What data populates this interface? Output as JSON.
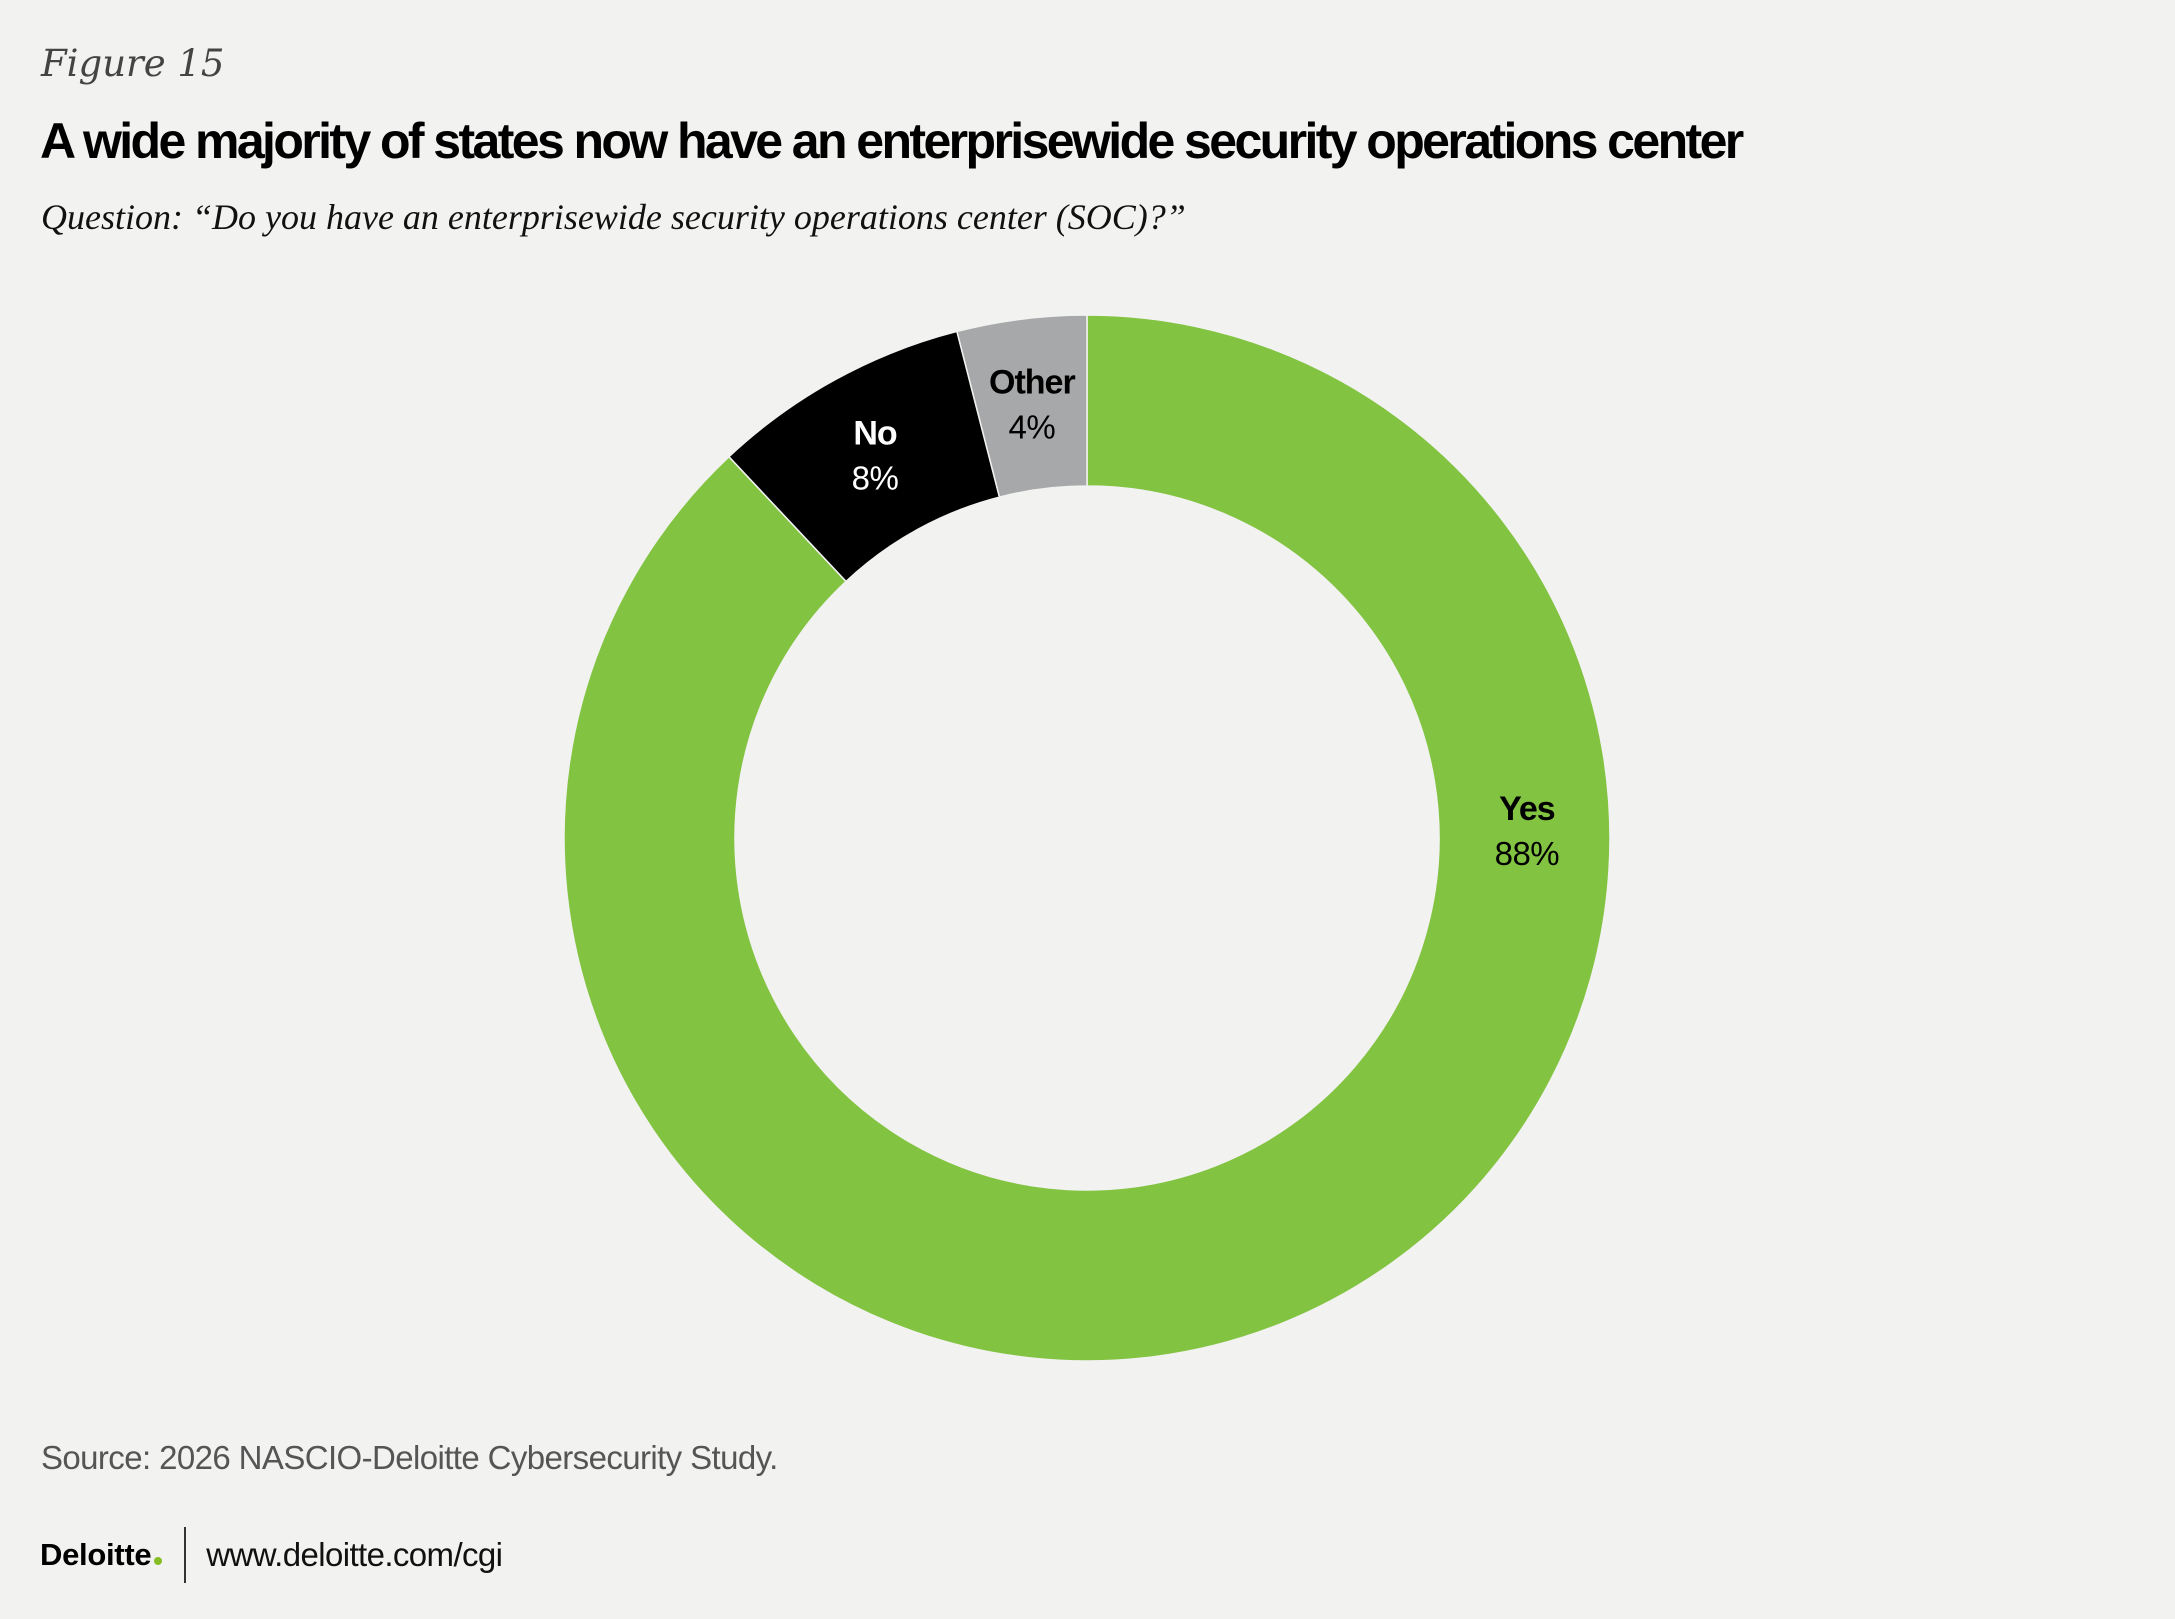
{
  "figure_label": "Figure 15",
  "title": "A wide majority of states now have an enterprisewide security operations center",
  "question": "Question: “Do you have an enterprisewide security operations center (SOC)?”",
  "chart_data": {
    "type": "pie",
    "style": "donut",
    "title": "A wide majority of states now have an enterprisewide security operations center",
    "slices": [
      {
        "label": "Yes",
        "value": 88,
        "display": "88%",
        "color": "#82c341",
        "label_color": "#000000"
      },
      {
        "label": "No",
        "value": 8,
        "display": "8%",
        "color": "#000000",
        "label_color": "#ffffff"
      },
      {
        "label": "Other",
        "value": 4,
        "display": "4%",
        "color": "#a7a8a9",
        "label_color": "#000000"
      }
    ],
    "start": "top",
    "direction": "clockwise"
  },
  "source": "Source: 2026 NASCIO-Deloitte Cybersecurity Study.",
  "footer": {
    "brand": "Deloitte",
    "brand_dot_color": "#86bc25",
    "url": "www.deloitte.com/cgi"
  }
}
